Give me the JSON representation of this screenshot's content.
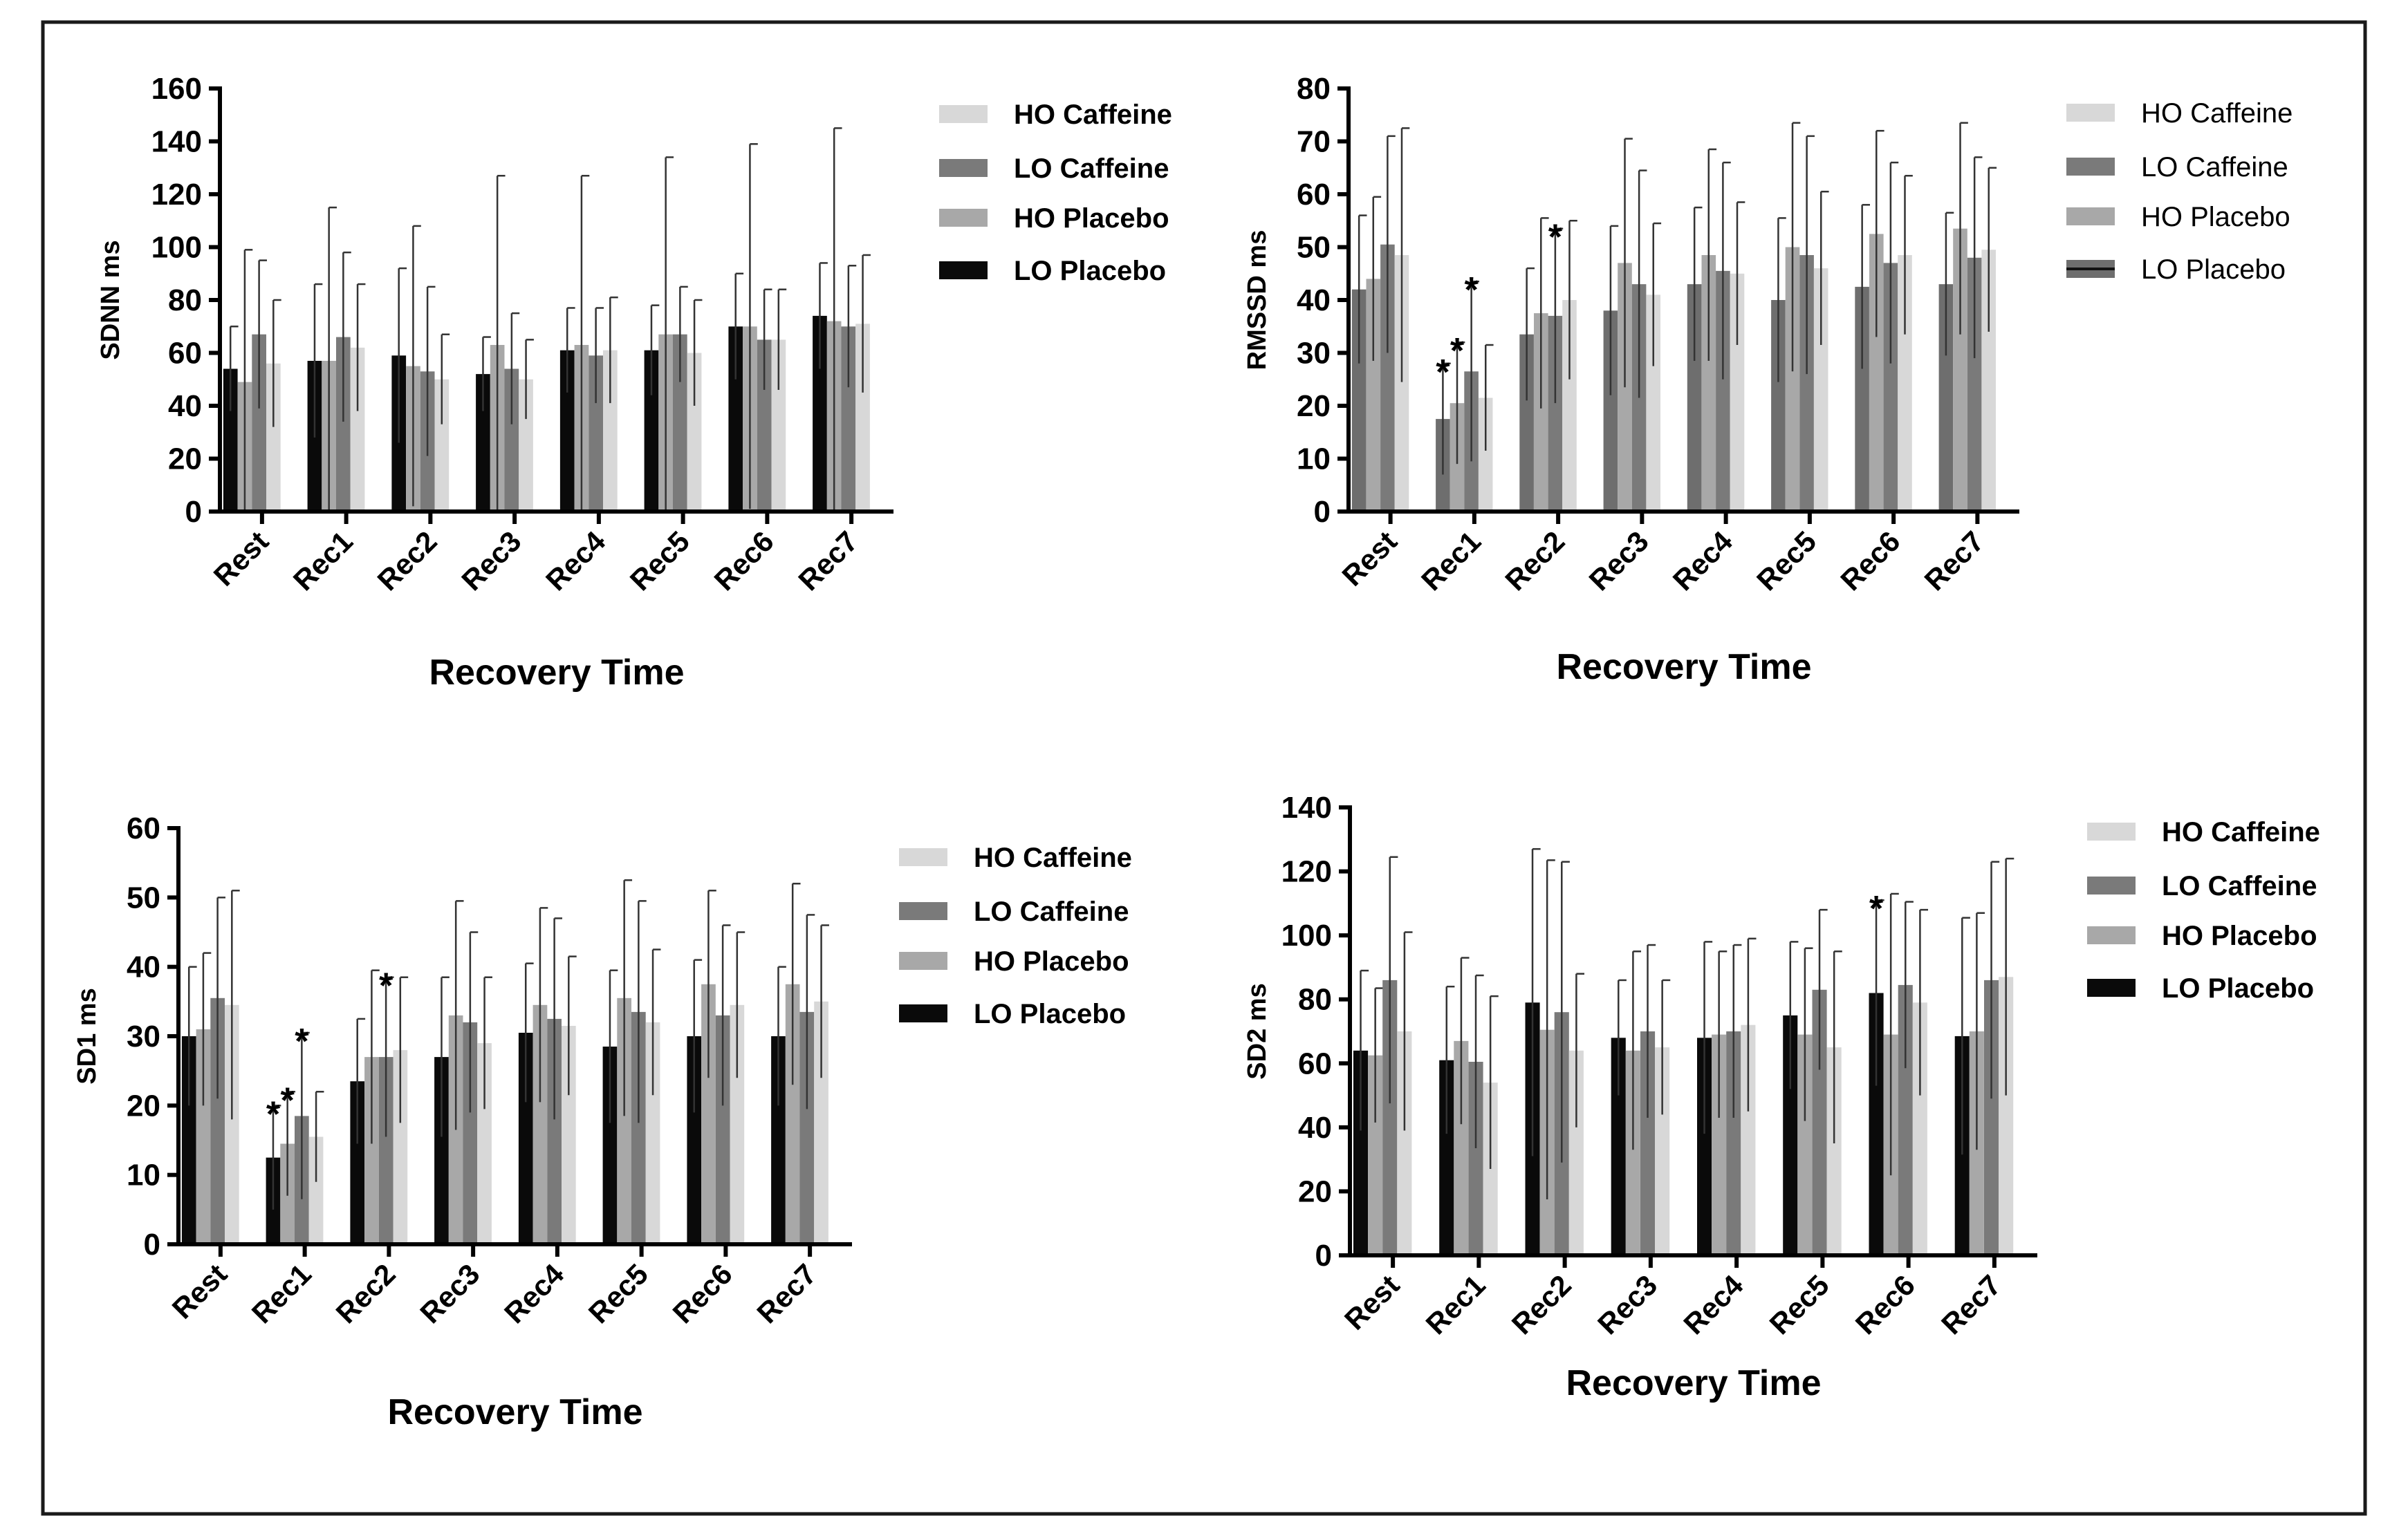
{
  "chart_data": [
    {
      "type": "bar",
      "panel": "top-left",
      "ylabel": "SDNN ms",
      "xlabel": "Recovery Time",
      "ylim": [
        0,
        160
      ],
      "yticks": [
        0,
        20,
        40,
        60,
        80,
        100,
        120,
        140,
        160
      ],
      "categories": [
        "Rest",
        "Rec1",
        "Rec2",
        "Rec3",
        "Rec4",
        "Rec5",
        "Rec6",
        "Rec7"
      ],
      "legend_bold": true,
      "series": [
        {
          "name": "LO Placebo",
          "color": "#0a0a0a",
          "values": [
            54,
            57,
            59,
            52,
            61,
            61,
            70,
            74
          ],
          "errors": [
            16,
            29,
            33,
            14,
            16,
            17,
            20,
            20
          ]
        },
        {
          "name": "HO Placebo",
          "color": "#a8a8a8",
          "values": [
            49,
            57,
            55,
            63,
            63,
            67,
            70,
            72
          ],
          "errors": [
            50,
            58,
            53,
            64,
            64,
            67,
            69,
            73
          ]
        },
        {
          "name": "LO Caffeine",
          "color": "#7a7a7a",
          "values": [
            67,
            66,
            53,
            54,
            59,
            67,
            65,
            70
          ],
          "errors": [
            28,
            32,
            32,
            21,
            18,
            18,
            19,
            23
          ]
        },
        {
          "name": "HO Caffeine",
          "color": "#d8d8d8",
          "values": [
            56,
            62,
            50,
            50,
            61,
            60,
            65,
            71
          ],
          "errors": [
            24,
            24,
            17,
            15,
            20,
            20,
            19,
            26
          ]
        }
      ],
      "legend": [
        "HO Caffeine",
        "LO Caffeine",
        "HO Placebo",
        "LO Placebo"
      ],
      "significance": []
    },
    {
      "type": "bar",
      "panel": "top-right",
      "ylabel": "RMSSD ms",
      "xlabel": "Recovery Time",
      "ylim": [
        0,
        80
      ],
      "yticks": [
        0,
        10,
        20,
        30,
        40,
        50,
        60,
        70,
        80
      ],
      "categories": [
        "Rest",
        "Rec1",
        "Rec2",
        "Rec3",
        "Rec4",
        "Rec5",
        "Rec6",
        "Rec7"
      ],
      "legend_bold": false,
      "series": [
        {
          "name": "LO Placebo",
          "color": "#6e6e6e",
          "values": [
            42,
            17.5,
            33.5,
            38,
            43,
            40,
            42.5,
            43
          ],
          "errors": [
            14,
            10.5,
            12.5,
            16,
            14.5,
            15.5,
            15.5,
            13.5
          ]
        },
        {
          "name": "HO Placebo",
          "color": "#a8a8a8",
          "values": [
            44,
            20.5,
            37.5,
            47,
            48.5,
            50,
            52.5,
            53.5
          ],
          "errors": [
            15.5,
            11.5,
            18,
            23.5,
            20,
            23.5,
            19.5,
            20
          ]
        },
        {
          "name": "LO Caffeine",
          "color": "#7a7a7a",
          "values": [
            50.5,
            26.5,
            37,
            43,
            45.5,
            48.5,
            47,
            48
          ],
          "errors": [
            20.5,
            17,
            16.5,
            21.5,
            20.5,
            22.5,
            19,
            19
          ]
        },
        {
          "name": "HO Caffeine",
          "color": "#d8d8d8",
          "values": [
            48.5,
            21.5,
            40,
            41,
            45,
            46,
            48.5,
            49.5
          ],
          "errors": [
            24,
            10,
            15,
            13.5,
            13.5,
            14.5,
            15,
            15.5
          ]
        }
      ],
      "legend": [
        "HO Caffeine",
        "LO Caffeine",
        "HO Placebo",
        "LO Placebo"
      ],
      "significance": [
        {
          "category": "Rec1",
          "series": "LO Placebo",
          "label": "*"
        },
        {
          "category": "Rec1",
          "series": "HO Placebo",
          "label": "*"
        },
        {
          "category": "Rec1",
          "series": "LO Caffeine",
          "label": "*"
        },
        {
          "category": "Rec2",
          "series": "LO Caffeine",
          "label": "*"
        }
      ]
    },
    {
      "type": "bar",
      "panel": "bottom-left",
      "ylabel": "SD1 ms",
      "xlabel": "Recovery Time",
      "ylim": [
        0,
        60
      ],
      "yticks": [
        0,
        10,
        20,
        30,
        40,
        50,
        60
      ],
      "categories": [
        "Rest",
        "Rec1",
        "Rec2",
        "Rec3",
        "Rec4",
        "Rec5",
        "Rec6",
        "Rec7"
      ],
      "legend_bold": true,
      "series": [
        {
          "name": "LO Placebo",
          "color": "#0a0a0a",
          "values": [
            30,
            12.5,
            23.5,
            27,
            30.5,
            28.5,
            30,
            30
          ],
          "errors": [
            10,
            7.5,
            9,
            11.5,
            10,
            11,
            11,
            10
          ]
        },
        {
          "name": "HO Placebo",
          "color": "#a8a8a8",
          "values": [
            31,
            14.5,
            27,
            33,
            34.5,
            35.5,
            37.5,
            37.5
          ],
          "errors": [
            11,
            7.5,
            12.5,
            16.5,
            14,
            17,
            13.5,
            14.5
          ]
        },
        {
          "name": "LO Caffeine",
          "color": "#7a7a7a",
          "values": [
            35.5,
            18.5,
            27,
            32,
            32.5,
            33.5,
            33,
            33.5
          ],
          "errors": [
            14.5,
            12,
            11.5,
            13,
            14.5,
            16,
            13,
            14
          ]
        },
        {
          "name": "HO Caffeine",
          "color": "#d8d8d8",
          "values": [
            34.5,
            15.5,
            28,
            29,
            31.5,
            32,
            34.5,
            35
          ],
          "errors": [
            16.5,
            6.5,
            10.5,
            9.5,
            10,
            10.5,
            10.5,
            11
          ]
        }
      ],
      "legend": [
        "HO Caffeine",
        "LO Caffeine",
        "HO Placebo",
        "LO Placebo"
      ],
      "significance": [
        {
          "category": "Rec1",
          "series": "LO Placebo",
          "label": "*"
        },
        {
          "category": "Rec1",
          "series": "HO Placebo",
          "label": "*"
        },
        {
          "category": "Rec1",
          "series": "LO Caffeine",
          "label": "*"
        },
        {
          "category": "Rec2",
          "series": "LO Caffeine",
          "label": "*"
        }
      ]
    },
    {
      "type": "bar",
      "panel": "bottom-right",
      "ylabel": "SD2 ms",
      "xlabel": "Recovery Time",
      "ylim": [
        0,
        140
      ],
      "yticks": [
        0,
        20,
        40,
        60,
        80,
        100,
        120,
        140
      ],
      "categories": [
        "Rest",
        "Rec1",
        "Rec2",
        "Rec3",
        "Rec4",
        "Rec5",
        "Rec6",
        "Rec7"
      ],
      "legend_bold": true,
      "series": [
        {
          "name": "LO Placebo",
          "color": "#0a0a0a",
          "values": [
            64,
            61,
            79,
            68,
            68,
            75,
            82,
            68.5
          ],
          "errors": [
            25,
            23,
            48,
            18,
            30,
            23,
            29,
            37
          ]
        },
        {
          "name": "HO Placebo",
          "color": "#a8a8a8",
          "values": [
            62.5,
            67,
            70.5,
            64,
            69,
            69,
            69,
            70
          ],
          "errors": [
            21,
            26,
            53,
            31,
            26,
            27,
            44,
            37
          ]
        },
        {
          "name": "LO Caffeine",
          "color": "#7a7a7a",
          "values": [
            86,
            60.5,
            76,
            70,
            70,
            83,
            84.5,
            86
          ],
          "errors": [
            38.5,
            27,
            47,
            27,
            27,
            25,
            26,
            37
          ]
        },
        {
          "name": "HO Caffeine",
          "color": "#d8d8d8",
          "values": [
            70,
            54,
            64,
            65,
            72,
            65,
            79,
            87
          ],
          "errors": [
            31,
            27,
            24,
            21,
            27,
            30,
            29,
            37
          ]
        }
      ],
      "legend": [
        "HO Caffeine",
        "LO Caffeine",
        "HO Placebo",
        "LO Placebo"
      ],
      "significance": [
        {
          "category": "Rec6",
          "series": "LO Placebo",
          "label": "*"
        }
      ]
    }
  ]
}
